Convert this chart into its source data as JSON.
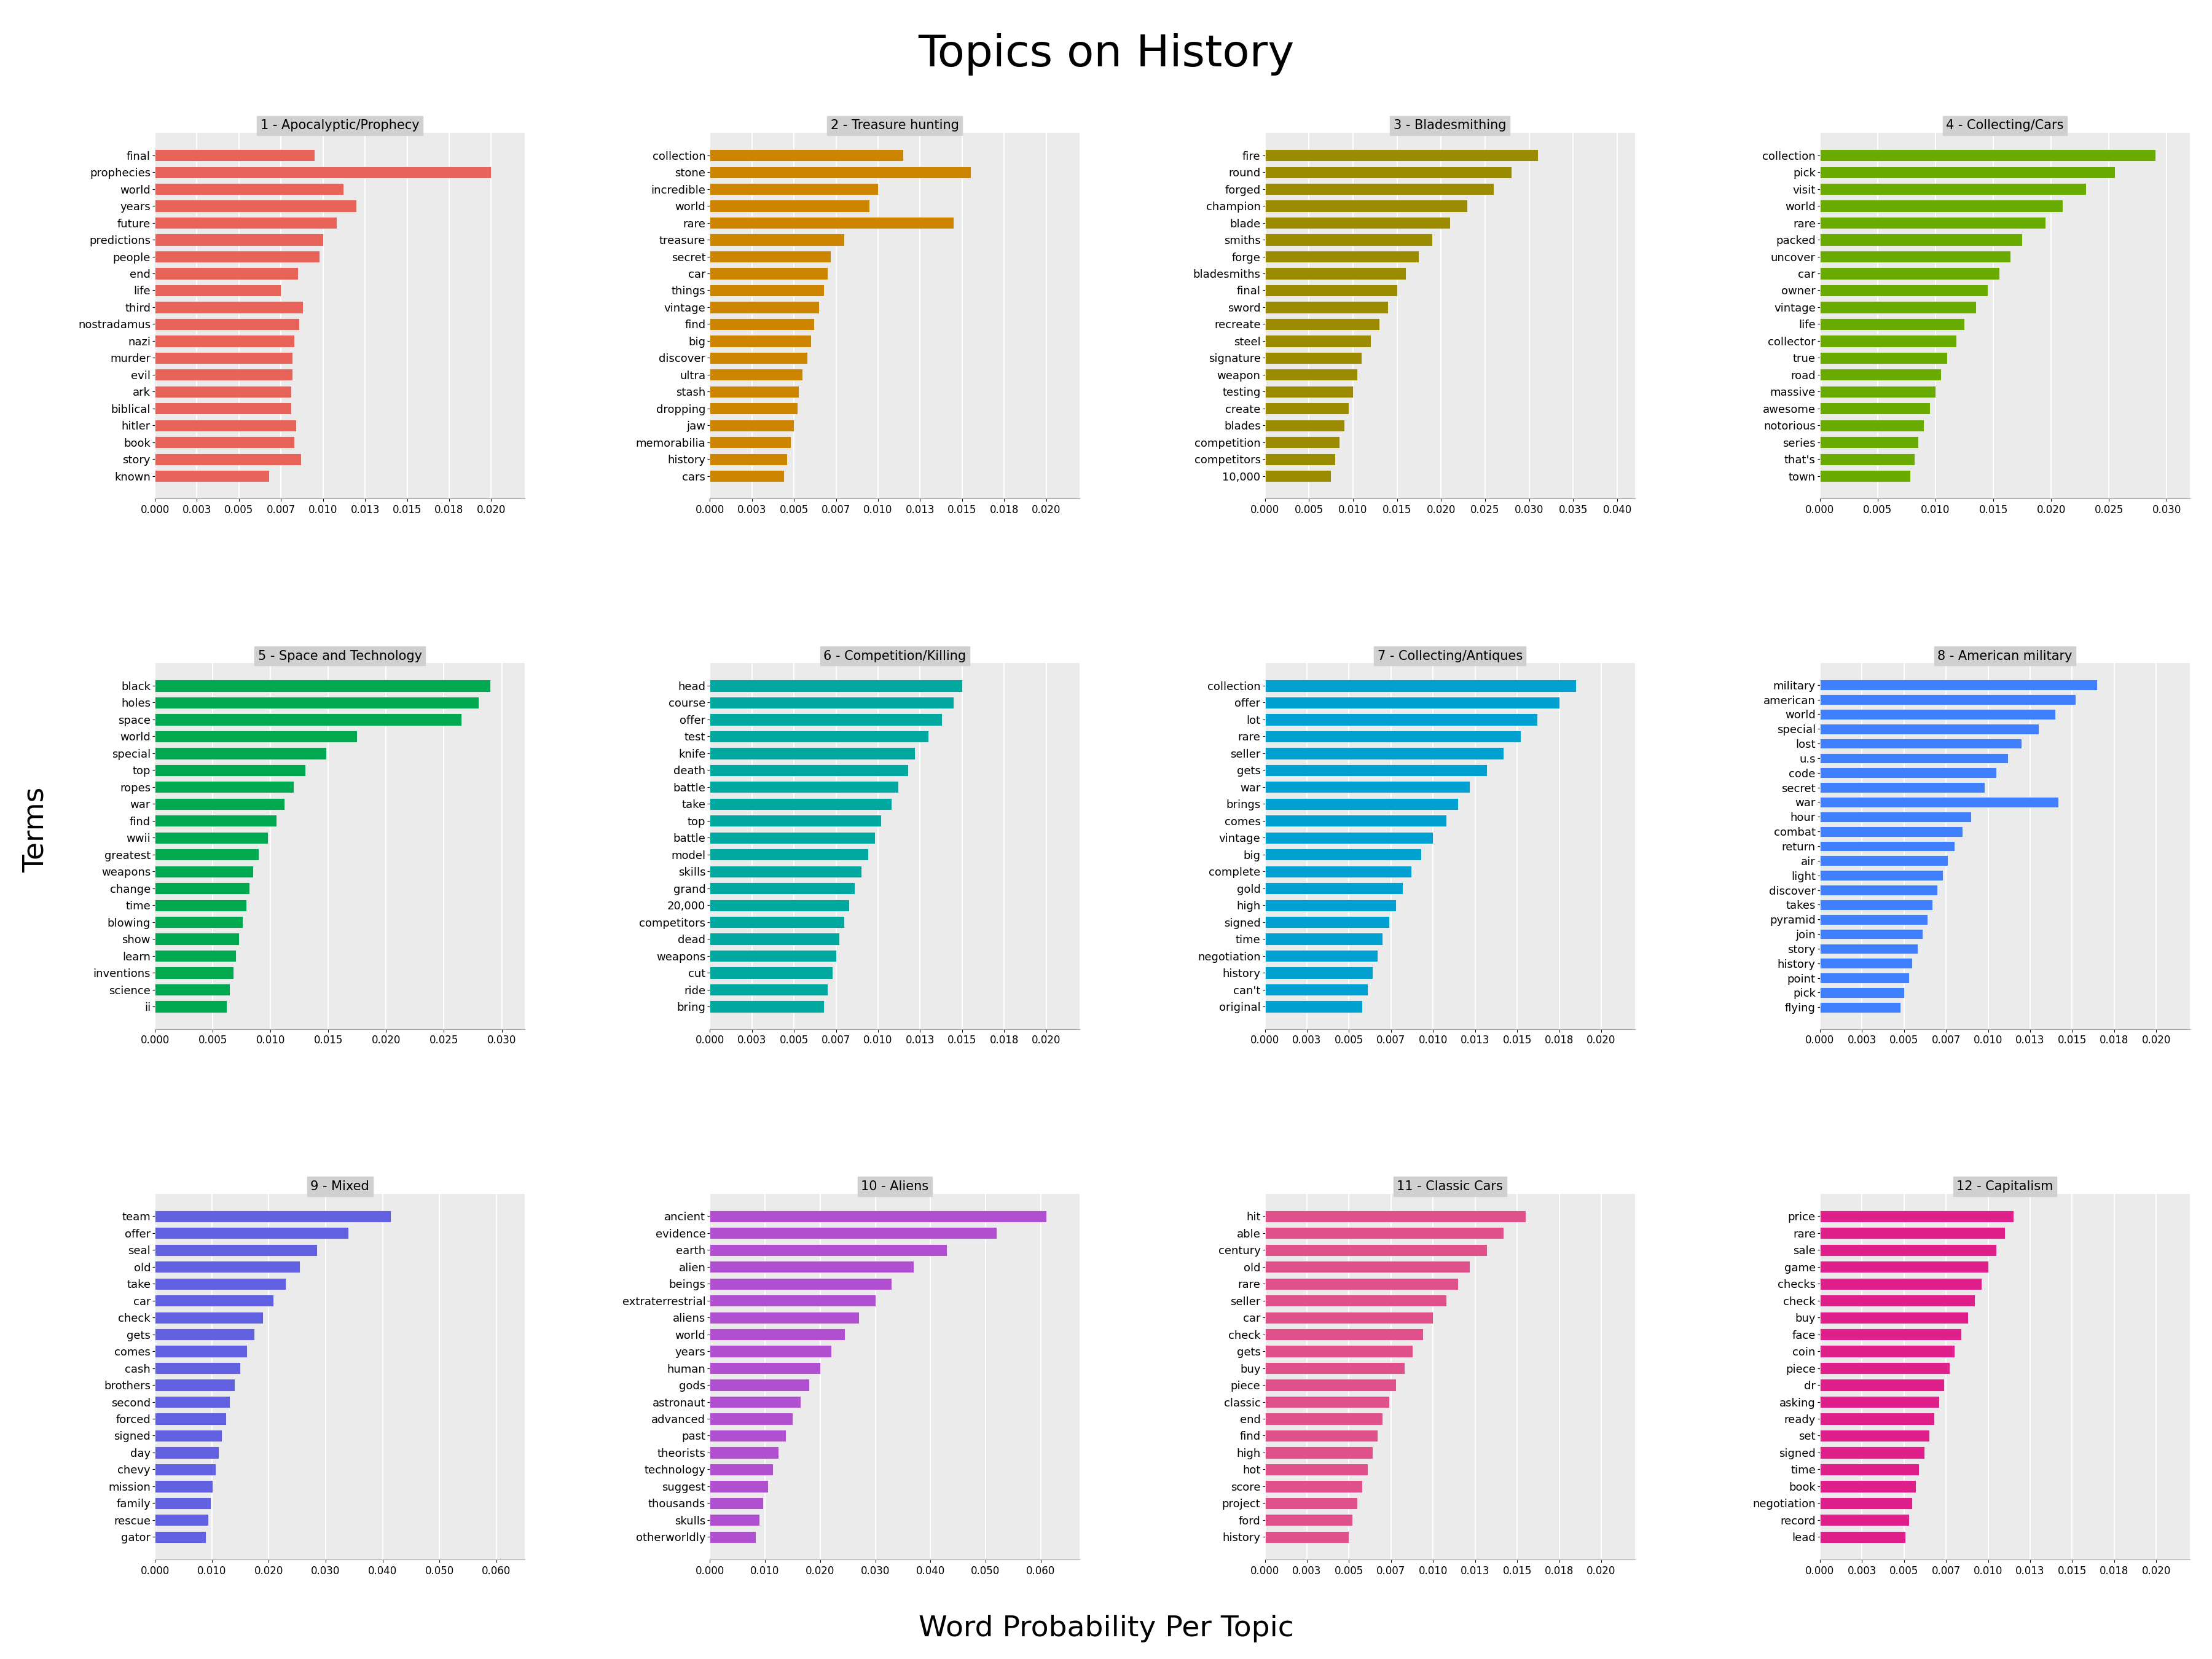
{
  "title": "Topics on History",
  "xlabel": "Word Probability Per Topic",
  "ylabel": "Terms",
  "topics": [
    {
      "title": "1 - Apocalyptic/Prophecy",
      "color": "#E8635A",
      "words": [
        "final",
        "prophecies",
        "world",
        "years",
        "future",
        "predictions",
        "people",
        "end",
        "life",
        "third",
        "nostradamus",
        "nazi",
        "murder",
        "evil",
        "ark",
        "biblical",
        "hitler",
        "book",
        "story",
        "known"
      ],
      "values": [
        0.0095,
        0.02,
        0.0112,
        0.012,
        0.0108,
        0.01,
        0.0098,
        0.0085,
        0.0075,
        0.0088,
        0.0086,
        0.0083,
        0.0082,
        0.0082,
        0.0081,
        0.0081,
        0.0084,
        0.0083,
        0.0087,
        0.0068
      ]
    },
    {
      "title": "2 - Treasure hunting",
      "color": "#CD8500",
      "words": [
        "collection",
        "stone",
        "incredible",
        "world",
        "rare",
        "treasure",
        "secret",
        "car",
        "things",
        "vintage",
        "find",
        "big",
        "discover",
        "ultra",
        "stash",
        "dropping",
        "jaw",
        "memorabilia",
        "history",
        "cars"
      ],
      "values": [
        0.0115,
        0.0155,
        0.01,
        0.0095,
        0.0145,
        0.008,
        0.0072,
        0.007,
        0.0068,
        0.0065,
        0.0062,
        0.006,
        0.0058,
        0.0055,
        0.0053,
        0.0052,
        0.005,
        0.0048,
        0.0046,
        0.0044
      ]
    },
    {
      "title": "3 - Bladesmithing",
      "color": "#9B8B00",
      "words": [
        "fire",
        "round",
        "forged",
        "champion",
        "blade",
        "smiths",
        "forge",
        "bladesmiths",
        "final",
        "sword",
        "recreate",
        "steel",
        "signature",
        "weapon",
        "testing",
        "create",
        "blades",
        "competition",
        "competitors",
        "10,000"
      ],
      "values": [
        0.031,
        0.028,
        0.026,
        0.023,
        0.021,
        0.019,
        0.0175,
        0.016,
        0.015,
        0.014,
        0.013,
        0.012,
        0.011,
        0.0105,
        0.01,
        0.0095,
        0.009,
        0.0085,
        0.008,
        0.0075
      ]
    },
    {
      "title": "4 - Collecting/Cars",
      "color": "#6AAB00",
      "words": [
        "collection",
        "pick",
        "visit",
        "world",
        "rare",
        "packed",
        "uncover",
        "car",
        "owner",
        "vintage",
        "life",
        "collector",
        "true",
        "road",
        "massive",
        "awesome",
        "notorious",
        "series",
        "that's",
        "town"
      ],
      "values": [
        0.029,
        0.0255,
        0.023,
        0.021,
        0.0195,
        0.0175,
        0.0165,
        0.0155,
        0.0145,
        0.0135,
        0.0125,
        0.0118,
        0.011,
        0.0105,
        0.01,
        0.0095,
        0.009,
        0.0085,
        0.0082,
        0.0078
      ]
    },
    {
      "title": "5 - Space and Technology",
      "color": "#00A850",
      "words": [
        "black",
        "holes",
        "space",
        "world",
        "special",
        "top",
        "ropes",
        "war",
        "find",
        "wwii",
        "greatest",
        "weapons",
        "change",
        "time",
        "blowing",
        "show",
        "learn",
        "inventions",
        "science",
        "ii"
      ],
      "values": [
        0.029,
        0.028,
        0.0265,
        0.0175,
        0.0148,
        0.013,
        0.012,
        0.0112,
        0.0105,
        0.0098,
        0.009,
        0.0085,
        0.0082,
        0.0079,
        0.0076,
        0.0073,
        0.007,
        0.0068,
        0.0065,
        0.0062
      ]
    },
    {
      "title": "6 - Competition/Killing",
      "color": "#00A8A0",
      "words": [
        "head",
        "course",
        "offer",
        "test",
        "knife",
        "death",
        "battle",
        "take",
        "top",
        "battle",
        "model",
        "skills",
        "grand",
        "20,000",
        "competitors",
        "dead",
        "weapons",
        "cut",
        "ride",
        "bring"
      ],
      "values": [
        0.015,
        0.0145,
        0.0138,
        0.013,
        0.0122,
        0.0118,
        0.0112,
        0.0108,
        0.0102,
        0.0098,
        0.0094,
        0.009,
        0.0086,
        0.0083,
        0.008,
        0.0077,
        0.0075,
        0.0073,
        0.007,
        0.0068
      ]
    },
    {
      "title": "7 - Collecting/Antiques",
      "color": "#00A0D0",
      "words": [
        "collection",
        "offer",
        "lot",
        "rare",
        "seller",
        "gets",
        "war",
        "brings",
        "comes",
        "vintage",
        "big",
        "complete",
        "gold",
        "high",
        "signed",
        "time",
        "negotiation",
        "history",
        "can't",
        "original"
      ],
      "values": [
        0.0185,
        0.0175,
        0.0162,
        0.0152,
        0.0142,
        0.0132,
        0.0122,
        0.0115,
        0.0108,
        0.01,
        0.0093,
        0.0087,
        0.0082,
        0.0078,
        0.0074,
        0.007,
        0.0067,
        0.0064,
        0.0061,
        0.0058
      ]
    },
    {
      "title": "8 - American military",
      "color": "#4080FF",
      "words": [
        "military",
        "american",
        "world",
        "special",
        "lost",
        "u.s",
        "code",
        "secret",
        "war",
        "hour",
        "combat",
        "return",
        "air",
        "light",
        "discover",
        "takes",
        "pyramid",
        "join",
        "story",
        "history",
        "point",
        "pick",
        "flying"
      ],
      "values": [
        0.0165,
        0.0152,
        0.014,
        0.013,
        0.012,
        0.0112,
        0.0105,
        0.0098,
        0.0142,
        0.009,
        0.0085,
        0.008,
        0.0076,
        0.0073,
        0.007,
        0.0067,
        0.0064,
        0.0061,
        0.0058,
        0.0055,
        0.0053,
        0.005,
        0.0048
      ]
    },
    {
      "title": "9 - Mixed",
      "color": "#6060E0",
      "words": [
        "team",
        "offer",
        "seal",
        "old",
        "take",
        "car",
        "check",
        "gets",
        "comes",
        "cash",
        "brothers",
        "second",
        "forced",
        "signed",
        "day",
        "chevy",
        "mission",
        "family",
        "rescue",
        "gator"
      ],
      "values": [
        0.0415,
        0.034,
        0.0285,
        0.0255,
        0.023,
        0.0208,
        0.019,
        0.0175,
        0.0162,
        0.015,
        0.014,
        0.0132,
        0.0125,
        0.0118,
        0.0112,
        0.0107,
        0.0102,
        0.0098,
        0.0094,
        0.009
      ]
    },
    {
      "title": "10 - Aliens",
      "color": "#B050D0",
      "words": [
        "ancient",
        "evidence",
        "earth",
        "alien",
        "beings",
        "extraterrestrial",
        "aliens",
        "world",
        "years",
        "human",
        "gods",
        "astronaut",
        "advanced",
        "past",
        "theorists",
        "technology",
        "suggest",
        "thousands",
        "skulls",
        "otherworldly"
      ],
      "values": [
        0.061,
        0.052,
        0.043,
        0.037,
        0.033,
        0.03,
        0.027,
        0.0245,
        0.022,
        0.02,
        0.018,
        0.0165,
        0.015,
        0.0138,
        0.0125,
        0.0115,
        0.0105,
        0.0097,
        0.009,
        0.0083
      ]
    },
    {
      "title": "11 - Classic Cars",
      "color": "#E0508A",
      "words": [
        "hit",
        "able",
        "century",
        "old",
        "rare",
        "seller",
        "car",
        "check",
        "gets",
        "buy",
        "piece",
        "classic",
        "end",
        "find",
        "high",
        "hot",
        "score",
        "project",
        "ford",
        "history"
      ],
      "values": [
        0.0155,
        0.0142,
        0.0132,
        0.0122,
        0.0115,
        0.0108,
        0.01,
        0.0094,
        0.0088,
        0.0083,
        0.0078,
        0.0074,
        0.007,
        0.0067,
        0.0064,
        0.0061,
        0.0058,
        0.0055,
        0.0052,
        0.005
      ]
    },
    {
      "title": "12 - Capitalism",
      "color": "#E0208A",
      "words": [
        "price",
        "rare",
        "sale",
        "game",
        "checks",
        "check",
        "buy",
        "face",
        "coin",
        "piece",
        "dr",
        "asking",
        "ready",
        "set",
        "signed",
        "time",
        "book",
        "negotiation",
        "record",
        "lead"
      ],
      "values": [
        0.0115,
        0.011,
        0.0105,
        0.01,
        0.0096,
        0.0092,
        0.0088,
        0.0084,
        0.008,
        0.0077,
        0.0074,
        0.0071,
        0.0068,
        0.0065,
        0.0062,
        0.0059,
        0.0057,
        0.0055,
        0.0053,
        0.0051
      ]
    }
  ]
}
